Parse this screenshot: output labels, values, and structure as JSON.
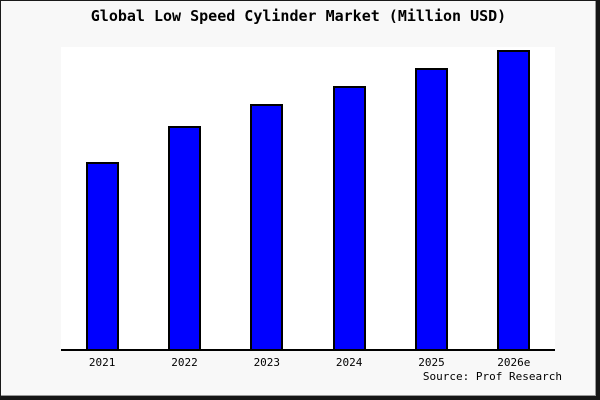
{
  "frame": {
    "background": "#f8f8f8",
    "border_color": "#161616"
  },
  "chart_data": {
    "type": "bar",
    "title": "Global Low Speed Cylinder Market (Million USD)",
    "categories": [
      "2021",
      "2022",
      "2023",
      "2024",
      "2025",
      "2026e"
    ],
    "values": [
      62,
      74,
      81,
      87,
      93,
      99
    ],
    "value_note": "no y-axis ticks or data labels shown; values estimated from bar heights as percent of plot height",
    "xlabel": "",
    "ylabel": "",
    "ylim": [
      0,
      100
    ],
    "grid": false,
    "legend": false,
    "plot_background": "#ffffff",
    "bar_color": "#0000ff",
    "bar_border_color": "#000000",
    "axis_color": "#000000",
    "source_label": "Source: Prof Research"
  }
}
